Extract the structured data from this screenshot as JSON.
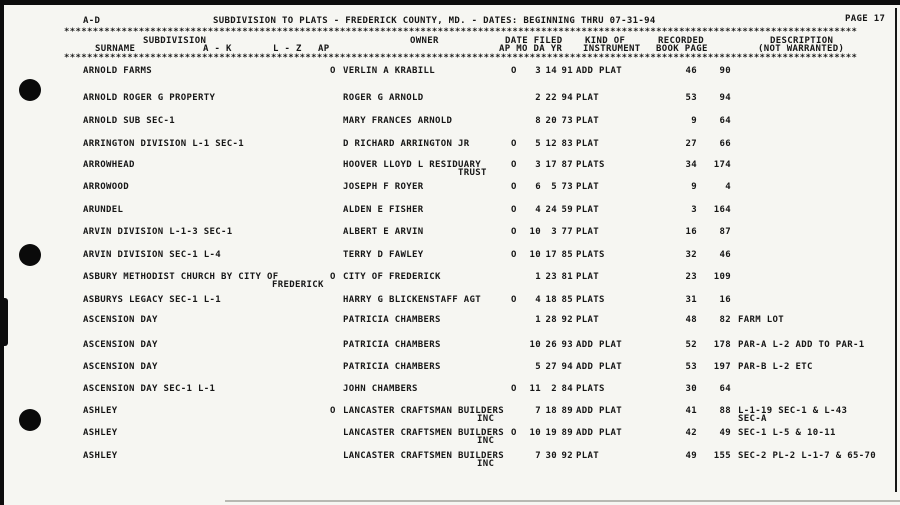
{
  "page": {
    "section": "A-D",
    "title": "SUBDIVISION TO PLATS - FREDERICK COUNTY, MD. - DATES: BEGINNING THRU 07-31-94",
    "page_label": "PAGE 17"
  },
  "separator": "******************************************************************************************************************************************",
  "columns": {
    "subdivision_group": "SUBDIVISION",
    "surname": "SURNAME",
    "a_k": "A - K",
    "l_z": "L - Z",
    "ap": "AP",
    "owner": "OWNER",
    "date_filed_line1": "DATE FILED",
    "date_filed_line2": "AP MO DA YR",
    "kind_line1": "KIND OF",
    "kind_line2": "INSTRUMENT",
    "recorded_line1": "RECORDED",
    "recorded_line2": "BOOK PAGE",
    "description_line1": "DESCRIPTION",
    "description_line2": "(NOT WARRANTED)"
  },
  "rows": [
    {
      "sub": "ARNOLD FARMS",
      "owner_flag": "O",
      "owner": "VERLIN A KRABILL",
      "ap": "O",
      "mo": "3",
      "da": "14",
      "yr": "91",
      "instrument": "ADD PLAT",
      "book": "46",
      "pg": "90",
      "desc": ""
    },
    {
      "sub": "ARNOLD ROGER G PROPERTY",
      "owner_flag": "",
      "owner": "ROGER G ARNOLD",
      "ap": "",
      "mo": "2",
      "da": "22",
      "yr": "94",
      "instrument": "PLAT",
      "book": "53",
      "pg": "94",
      "desc": ""
    },
    {
      "sub": "ARNOLD SUB SEC-1",
      "owner_flag": "",
      "owner": "MARY FRANCES ARNOLD",
      "ap": "",
      "mo": "8",
      "da": "20",
      "yr": "73",
      "instrument": "PLAT",
      "book": "9",
      "pg": "64",
      "desc": ""
    },
    {
      "sub": "ARRINGTON DIVISION L-1 SEC-1",
      "owner_flag": "",
      "owner": "D RICHARD ARRINGTON JR",
      "ap": "O",
      "mo": "5",
      "da": "12",
      "yr": "83",
      "instrument": "PLAT",
      "book": "27",
      "pg": "66",
      "desc": ""
    },
    {
      "sub": "ARROWHEAD",
      "owner_flag": "",
      "owner": "HOOVER LLOYD L RESIDUARY",
      "owner2": "TRUST",
      "ap": "O",
      "mo": "3",
      "da": "17",
      "yr": "87",
      "instrument": "PLATS",
      "book": "34",
      "pg": "174",
      "desc": ""
    },
    {
      "sub": "ARROWOOD",
      "owner_flag": "",
      "owner": "JOSEPH F ROYER",
      "ap": "O",
      "mo": "6",
      "da": "5",
      "yr": "73",
      "instrument": "PLAT",
      "book": "9",
      "pg": "4",
      "desc": ""
    },
    {
      "sub": "ARUNDEL",
      "owner_flag": "",
      "owner": "ALDEN E FISHER",
      "ap": "O",
      "mo": "4",
      "da": "24",
      "yr": "59",
      "instrument": "PLAT",
      "book": "3",
      "pg": "164",
      "desc": ""
    },
    {
      "sub": "ARVIN DIVISION L-1-3 SEC-1",
      "owner_flag": "",
      "owner": "ALBERT E ARVIN",
      "ap": "O",
      "mo": "10",
      "da": "3",
      "yr": "77",
      "instrument": "PLAT",
      "book": "16",
      "pg": "87",
      "desc": ""
    },
    {
      "sub": "ARVIN DIVISION SEC-1 L-4",
      "owner_flag": "",
      "owner": "TERRY D FAWLEY",
      "ap": "O",
      "mo": "10",
      "da": "17",
      "yr": "85",
      "instrument": "PLATS",
      "book": "32",
      "pg": "46",
      "desc": ""
    },
    {
      "sub": "ASBURY METHODIST CHURCH BY CITY OF",
      "sub2": "FREDERICK",
      "owner_flag": "O",
      "owner": "CITY OF FREDERICK",
      "ap": "",
      "mo": "1",
      "da": "23",
      "yr": "81",
      "instrument": "PLAT",
      "book": "23",
      "pg": "109",
      "desc": ""
    },
    {
      "sub": "ASBURYS LEGACY SEC-1 L-1",
      "owner_flag": "",
      "owner": "HARRY G BLICKENSTAFF AGT",
      "ap": "O",
      "mo": "4",
      "da": "18",
      "yr": "85",
      "instrument": "PLATS",
      "book": "31",
      "pg": "16",
      "desc": ""
    },
    {
      "sub": "ASCENSION DAY",
      "owner_flag": "",
      "owner": "PATRICIA CHAMBERS",
      "ap": "",
      "mo": "1",
      "da": "28",
      "yr": "92",
      "instrument": "PLAT",
      "book": "48",
      "pg": "82",
      "desc": "FARM LOT"
    },
    {
      "sub": "ASCENSION DAY",
      "owner_flag": "",
      "owner": "PATRICIA CHAMBERS",
      "ap": "",
      "mo": "10",
      "da": "26",
      "yr": "93",
      "instrument": "ADD PLAT",
      "book": "52",
      "pg": "178",
      "desc": "PAR-A L-2 ADD TO PAR-1"
    },
    {
      "sub": "ASCENSION DAY",
      "owner_flag": "",
      "owner": "PATRICIA CHAMBERS",
      "ap": "",
      "mo": "5",
      "da": "27",
      "yr": "94",
      "instrument": "ADD PLAT",
      "book": "53",
      "pg": "197",
      "desc": "PAR-B L-2 ETC"
    },
    {
      "sub": "ASCENSION DAY SEC-1 L-1",
      "owner_flag": "",
      "owner": "JOHN CHAMBERS",
      "ap": "O",
      "mo": "11",
      "da": "2",
      "yr": "84",
      "instrument": "PLATS",
      "book": "30",
      "pg": "64",
      "desc": ""
    },
    {
      "sub": "ASHLEY",
      "owner_flag": "O",
      "owner": "LANCASTER CRAFTSMAN BUILDERS",
      "owner2": "INC",
      "ap": "",
      "mo": "7",
      "da": "18",
      "yr": "89",
      "instrument": "ADD PLAT",
      "book": "41",
      "pg": "88",
      "desc": "L-1-19 SEC-1 & L-43",
      "desc2": "SEC-A"
    },
    {
      "sub": "ASHLEY",
      "owner_flag": "",
      "owner": "LANCASTER CRAFTSMEN BUILDERS",
      "owner2": "INC",
      "ap": "O",
      "mo": "10",
      "da": "19",
      "yr": "89",
      "instrument": "ADD PLAT",
      "book": "42",
      "pg": "49",
      "desc": "SEC-1 L-5 & 10-11"
    },
    {
      "sub": "ASHLEY",
      "owner_flag": "",
      "owner": "LANCASTER CRAFTSMEN BUILDERS",
      "owner2": "INC",
      "ap": "",
      "mo": "7",
      "da": "30",
      "yr": "92",
      "instrument": "PLAT",
      "book": "49",
      "pg": "155",
      "desc": "SEC-2 PL-2 L-1-7 & 65-70"
    }
  ]
}
